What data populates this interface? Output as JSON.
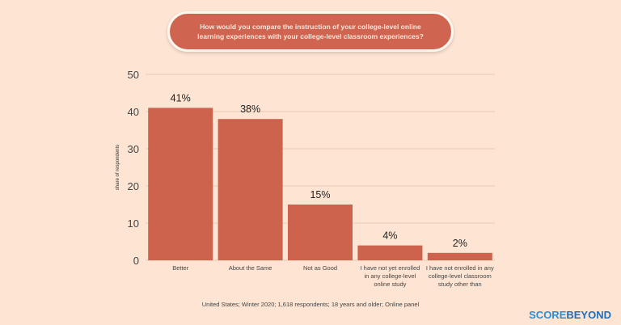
{
  "title": "How would you compare the instruction of your college-level online learning experiences with your college-level classroom experiences?",
  "footnote": "United States; Winter 2020; 1,618 respondents; 18 years and older; Online panel",
  "logo": {
    "part1": "SCORE",
    "part2": "BEYOND"
  },
  "colors": {
    "bar": "#cd634d",
    "background": "#fde4d3"
  },
  "chart_data": {
    "type": "bar",
    "categories": [
      "Better",
      "About the Same",
      "Not as Good",
      "I have not yet enrolled in any college-level online study",
      "I have not enrolled in any college-level classroom study other than"
    ],
    "category_lines": [
      [
        "Better"
      ],
      [
        "About the Same"
      ],
      [
        "Not as Good"
      ],
      [
        "I have not yet enrolled",
        "in any college-level",
        "online study"
      ],
      [
        "I have not enrolled in any",
        "college-level classroom",
        "study other than"
      ]
    ],
    "values": [
      41,
      38,
      15,
      4,
      2
    ],
    "data_labels": [
      "41%",
      "38%",
      "15%",
      "4%",
      "2%"
    ],
    "ylabel": "share of respondents",
    "ylim": [
      0,
      50
    ],
    "yticks": [
      0,
      10,
      20,
      30,
      40,
      50
    ],
    "grid": true
  }
}
